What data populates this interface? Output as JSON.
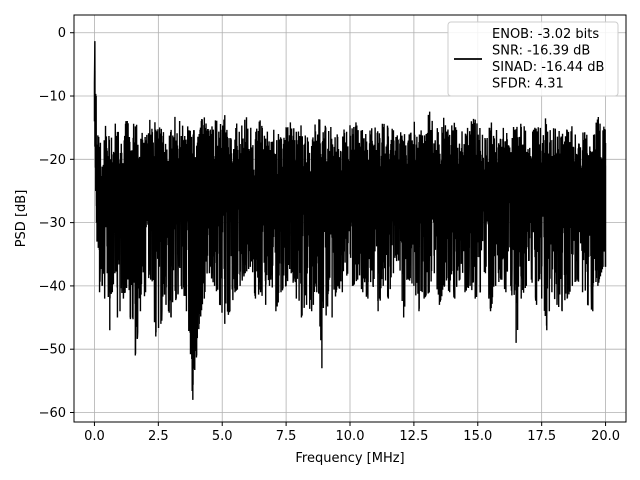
{
  "chart_data": {
    "type": "line",
    "xlabel": "Frequency [MHz]",
    "ylabel": "PSD [dB]",
    "xlim": [
      -0.8,
      20.8
    ],
    "ylim": [
      -61.5,
      2.8
    ],
    "xticks": [
      0.0,
      2.5,
      5.0,
      7.5,
      10.0,
      12.5,
      15.0,
      17.5,
      20.0
    ],
    "xtick_labels": [
      "0.0",
      "2.5",
      "5.0",
      "7.5",
      "10.0",
      "12.5",
      "15.0",
      "17.5",
      "20.0"
    ],
    "yticks": [
      0,
      -10,
      -20,
      -30,
      -40,
      -50,
      -60
    ],
    "ytick_labels": [
      "0",
      "−10",
      "−20",
      "−30",
      "−40",
      "−50",
      "−60"
    ],
    "grid": true,
    "legend_position": "top-right",
    "legend_lines": [
      "ENOB: -3.02 bits",
      "SNR: -16.39 dB",
      "SINAD: -16.44 dB",
      "SFDR: 4.31"
    ],
    "series": [
      {
        "color": "#000000",
        "x": [
          0.0,
          0.02,
          0.05,
          0.08,
          0.1,
          0.15,
          0.2,
          0.25,
          0.3,
          0.4,
          0.5,
          0.6,
          0.7,
          0.8,
          0.9,
          1.0,
          1.2,
          1.4,
          1.6,
          1.8,
          2.0,
          2.2,
          2.4,
          2.6,
          2.8,
          3.0,
          3.2,
          3.4,
          3.6,
          3.85,
          4.0,
          4.1,
          4.3,
          4.5,
          4.7,
          4.9,
          5.1,
          5.3,
          5.5,
          5.7,
          5.9,
          6.1,
          6.3,
          6.5,
          6.7,
          6.9,
          7.1,
          7.3,
          7.5,
          7.7,
          7.9,
          8.1,
          8.3,
          8.5,
          8.7,
          8.9,
          9.1,
          9.3,
          9.5,
          9.7,
          9.9,
          10.1,
          10.3,
          10.5,
          10.7,
          10.9,
          11.1,
          11.3,
          11.5,
          11.7,
          11.9,
          12.1,
          12.3,
          12.5,
          12.7,
          12.9,
          13.1,
          13.3,
          13.5,
          13.7,
          13.9,
          14.1,
          14.3,
          14.5,
          14.7,
          14.9,
          15.1,
          15.3,
          15.5,
          15.7,
          15.9,
          16.1,
          16.3,
          16.5,
          16.7,
          16.9,
          17.1,
          17.3,
          17.5,
          17.7,
          17.9,
          18.1,
          18.3,
          18.5,
          18.7,
          18.9,
          19.1,
          19.3,
          19.5,
          19.7,
          19.9,
          20.0
        ],
        "upper": [
          -8,
          0,
          -4,
          -12,
          -15,
          -13,
          -16,
          -18,
          -17,
          -14,
          -16,
          -15,
          -17,
          -14,
          -15,
          -16,
          -13,
          -15,
          -14,
          -16,
          -15,
          -13,
          -14,
          -15,
          -16,
          -15,
          -12,
          -14,
          -13,
          -15,
          -16,
          -14,
          -13,
          -15,
          -14,
          -12,
          -13,
          -16,
          -14,
          -15,
          -13,
          -14,
          -15,
          -13,
          -16,
          -14,
          -15,
          -16,
          -14,
          -13,
          -15,
          -14,
          -16,
          -15,
          -13,
          -14,
          -15,
          -14,
          -16,
          -15,
          -14,
          -15,
          -13,
          -14,
          -16,
          -14,
          -15,
          -13,
          -14,
          -15,
          -16,
          -14,
          -15,
          -13,
          -14,
          -16,
          -12,
          -15,
          -14,
          -13,
          -15,
          -14,
          -16,
          -15,
          -14,
          -13,
          -15,
          -16,
          -14,
          -15,
          -16,
          -14,
          -13,
          -15,
          -14,
          -15,
          -16,
          -14,
          -15,
          -13,
          -15,
          -14,
          -16,
          -15,
          -14,
          -15,
          -14,
          -16,
          -15,
          -13,
          -14,
          -15
        ],
        "lower": [
          -8,
          -18,
          -25,
          -30,
          -33,
          -34,
          -41,
          -36,
          -40,
          -42,
          -38,
          -47,
          -41,
          -38,
          -45,
          -44,
          -41,
          -45,
          -51,
          -44,
          -41,
          -39,
          -48,
          -46,
          -43,
          -45,
          -42,
          -40,
          -44,
          -58,
          -51,
          -46,
          -42,
          -38,
          -40,
          -43,
          -46,
          -44,
          -41,
          -40,
          -38,
          -37,
          -42,
          -41,
          -43,
          -39,
          -44,
          -41,
          -40,
          -38,
          -42,
          -45,
          -43,
          -44,
          -41,
          -53,
          -43,
          -45,
          -40,
          -41,
          -38,
          -40,
          -39,
          -41,
          -42,
          -40,
          -44,
          -40,
          -42,
          -38,
          -36,
          -45,
          -39,
          -40,
          -44,
          -42,
          -41,
          -38,
          -43,
          -40,
          -41,
          -42,
          -39,
          -41,
          -40,
          -42,
          -41,
          -38,
          -44,
          -40,
          -39,
          -41,
          -40,
          -49,
          -42,
          -40,
          -39,
          -43,
          -42,
          -47,
          -41,
          -43,
          -44,
          -42,
          -40,
          -39,
          -41,
          -43,
          -44,
          -40,
          -37,
          -37
        ]
      }
    ]
  }
}
